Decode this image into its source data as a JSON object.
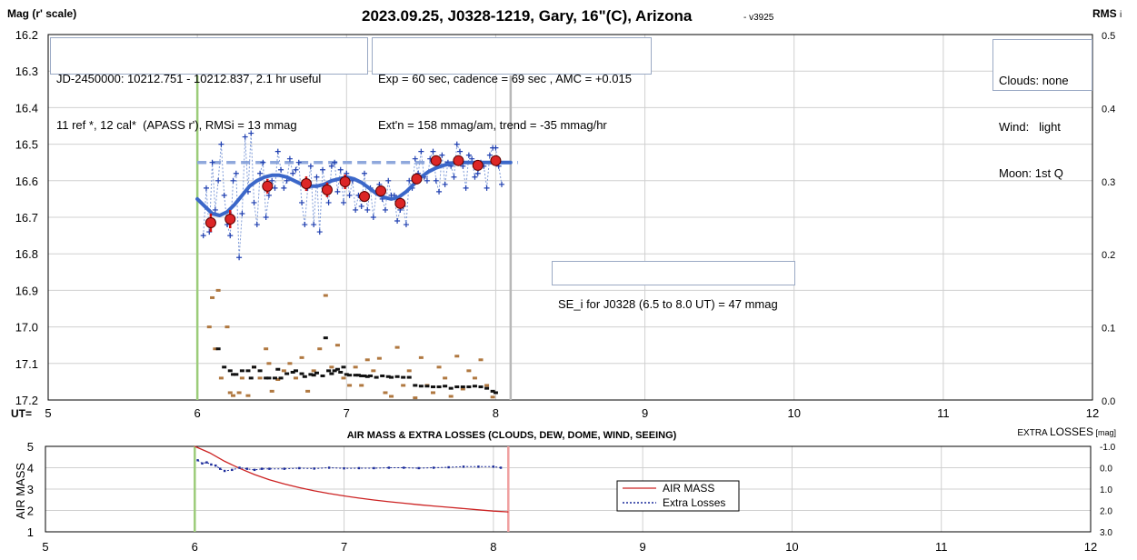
{
  "header": {
    "left_label": "Mag (r' scale)",
    "title": "2023.09.25, J0328-1219, Gary, 16\"(C), Arizona",
    "version": "- v3925",
    "right_label": "RMS",
    "right_label_suffix": "i"
  },
  "info_boxes": {
    "jd_line1": "JD-2450000: 10212.751 - 10212.837, 2.1 hr useful",
    "jd_line2": "11 ref *, 12 cal*  (APASS r'), RMSi = 13 mmag",
    "exp_line1": "Exp = 60 sec, cadence = 69 sec , AMC = +0.015",
    "exp_line2": "Ext'n = 158 mmag/am, trend = -35 mmag/hr",
    "cond_line1": "Clouds: none",
    "cond_line2": "Wind:   light",
    "cond_line3": "Moon: 1st Q",
    "se_text": "SE_i for J0328 (6.5 to 8.0 UT) = 47 mmag"
  },
  "chart_data": [
    {
      "type": "scatter",
      "ylabel": "Mag (r' scale)",
      "y2label": "RMS i",
      "xlabel": "UT=",
      "xlim": [
        5,
        12
      ],
      "ylim": [
        17.2,
        16.2
      ],
      "y2lim": [
        0.0,
        0.5
      ],
      "x_ticks": [
        "5",
        "6",
        "7",
        "8",
        "9",
        "10",
        "11",
        "12"
      ],
      "y_ticks": [
        "16.2",
        "16.3",
        "16.4",
        "16.5",
        "16.6",
        "16.7",
        "16.8",
        "16.9",
        "17.0",
        "17.1",
        "17.2"
      ],
      "y2_ticks": [
        "0.5",
        "0.4",
        "0.3",
        "0.2",
        "0.1",
        "0.0"
      ],
      "grid": true,
      "vlines": [
        {
          "x": 6.0,
          "color": "#9ccc7a"
        },
        {
          "x": 8.1,
          "color": "#b8b8b8"
        }
      ],
      "mean_line": {
        "y": 16.55,
        "x": [
          6.0,
          8.15
        ],
        "color": "#8fa8dc"
      },
      "series": [
        {
          "kind": "raw",
          "color": "#1f3fb0",
          "x": [
            6.04,
            6.06,
            6.08,
            6.1,
            6.12,
            6.14,
            6.16,
            6.18,
            6.2,
            6.22,
            6.24,
            6.26,
            6.28,
            6.3,
            6.32,
            6.34,
            6.36,
            6.38,
            6.4,
            6.42,
            6.44,
            6.46,
            6.48,
            6.5,
            6.52,
            6.54,
            6.56,
            6.58,
            6.6,
            6.62,
            6.64,
            6.66,
            6.68,
            6.7,
            6.72,
            6.74,
            6.76,
            6.78,
            6.8,
            6.82,
            6.84,
            6.86,
            6.88,
            6.9,
            6.92,
            6.94,
            6.96,
            6.98,
            7.0,
            7.02,
            7.04,
            7.06,
            7.08,
            7.1,
            7.12,
            7.14,
            7.16,
            7.18,
            7.2,
            7.22,
            7.24,
            7.26,
            7.28,
            7.3,
            7.32,
            7.34,
            7.36,
            7.38,
            7.4,
            7.42,
            7.44,
            7.46,
            7.48,
            7.5,
            7.52,
            7.54,
            7.56,
            7.58,
            7.6,
            7.62,
            7.64,
            7.66,
            7.68,
            7.7,
            7.72,
            7.74,
            7.76,
            7.78,
            7.8,
            7.82,
            7.84,
            7.86,
            7.88,
            7.9,
            7.92,
            7.94,
            7.96,
            7.98,
            8.0,
            8.02,
            8.04
          ],
          "y": [
            16.75,
            16.62,
            16.74,
            16.55,
            16.68,
            16.6,
            16.5,
            16.64,
            16.72,
            16.75,
            16.6,
            16.58,
            16.81,
            16.69,
            16.48,
            16.63,
            16.47,
            16.66,
            16.72,
            16.58,
            16.55,
            16.7,
            16.64,
            16.6,
            16.62,
            16.52,
            16.57,
            16.62,
            16.6,
            16.54,
            16.58,
            16.57,
            16.55,
            16.66,
            16.72,
            16.62,
            16.56,
            16.72,
            16.59,
            16.74,
            16.57,
            16.62,
            16.66,
            16.56,
            16.55,
            16.63,
            16.57,
            16.66,
            16.58,
            16.64,
            16.6,
            16.68,
            16.64,
            16.67,
            16.58,
            16.68,
            16.62,
            16.7,
            16.63,
            16.61,
            16.65,
            16.68,
            16.6,
            16.64,
            16.64,
            16.71,
            16.68,
            16.67,
            16.72,
            16.6,
            16.62,
            16.54,
            16.58,
            16.52,
            16.59,
            16.6,
            16.54,
            16.52,
            16.6,
            16.63,
            16.53,
            16.61,
            16.55,
            16.56,
            16.59,
            16.5,
            16.52,
            16.56,
            16.62,
            16.53,
            16.54,
            16.59,
            16.58,
            16.55,
            16.56,
            16.62,
            16.53,
            16.51,
            16.51,
            16.56,
            16.61
          ]
        },
        {
          "kind": "binned",
          "color": "#dc2626",
          "x": [
            6.09,
            6.22,
            6.47,
            6.73,
            6.87,
            6.99,
            7.12,
            7.23,
            7.36,
            7.47,
            7.6,
            7.75,
            7.88,
            8.0
          ],
          "y": [
            16.715,
            16.705,
            16.615,
            16.608,
            16.625,
            16.603,
            16.643,
            16.628,
            16.662,
            16.595,
            16.545,
            16.545,
            16.558,
            16.545
          ],
          "err": [
            0.025,
            0.025,
            0.02,
            0.02,
            0.02,
            0.02,
            0.015,
            0.015,
            0.015,
            0.015,
            0.012,
            0.012,
            0.012,
            0.012
          ]
        },
        {
          "kind": "model",
          "color": "#3b67c9",
          "x": [
            6.0,
            6.05,
            6.1,
            6.15,
            6.2,
            6.25,
            6.3,
            6.35,
            6.4,
            6.45,
            6.5,
            6.55,
            6.6,
            6.65,
            6.7,
            6.75,
            6.8,
            6.85,
            6.9,
            6.95,
            7.0,
            7.05,
            7.1,
            7.15,
            7.2,
            7.25,
            7.3,
            7.35,
            7.4,
            7.45,
            7.5,
            7.55,
            7.6,
            7.65,
            7.7,
            7.75,
            7.8,
            7.85,
            7.9,
            7.95,
            8.0,
            8.05,
            8.1
          ],
          "y": [
            16.65,
            16.67,
            16.69,
            16.695,
            16.685,
            16.665,
            16.64,
            16.615,
            16.6,
            16.59,
            16.585,
            16.585,
            16.59,
            16.6,
            16.61,
            16.615,
            16.615,
            16.61,
            16.6,
            16.595,
            16.59,
            16.595,
            16.605,
            16.62,
            16.635,
            16.645,
            16.65,
            16.645,
            16.63,
            16.61,
            16.59,
            16.575,
            16.565,
            16.558,
            16.553,
            16.551,
            16.55,
            16.55,
            16.55,
            16.55,
            16.55,
            16.55,
            16.55
          ]
        },
        {
          "kind": "rms_black",
          "color": "#111111",
          "axis": "right",
          "x": [
            6.14,
            6.18,
            6.22,
            6.24,
            6.26,
            6.3,
            6.34,
            6.36,
            6.38,
            6.42,
            6.46,
            6.48,
            6.52,
            6.54,
            6.56,
            6.6,
            6.64,
            6.66,
            6.7,
            6.72,
            6.76,
            6.78,
            6.8,
            6.84,
            6.86,
            6.88,
            6.9,
            6.92,
            6.94,
            6.96,
            6.98,
            7.0,
            7.02,
            7.06,
            7.08,
            7.1,
            7.12,
            7.14,
            7.16,
            7.2,
            7.24,
            7.28,
            7.3,
            7.34,
            7.38,
            7.42,
            7.46,
            7.5,
            7.54,
            7.58,
            7.62,
            7.66,
            7.7,
            7.74,
            7.78,
            7.82,
            7.86,
            7.9,
            7.94,
            7.98,
            8.0
          ],
          "y": [
            0.07,
            0.045,
            0.04,
            0.035,
            0.035,
            0.04,
            0.04,
            0.03,
            0.045,
            0.04,
            0.03,
            0.03,
            0.03,
            0.042,
            0.03,
            0.036,
            0.038,
            0.04,
            0.036,
            0.032,
            0.035,
            0.034,
            0.037,
            0.033,
            0.085,
            0.04,
            0.036,
            0.04,
            0.042,
            0.038,
            0.045,
            0.035,
            0.034,
            0.034,
            0.034,
            0.033,
            0.033,
            0.032,
            0.033,
            0.031,
            0.033,
            0.032,
            0.031,
            0.032,
            0.031,
            0.031,
            0.02,
            0.019,
            0.019,
            0.018,
            0.018,
            0.019,
            0.016,
            0.018,
            0.018,
            0.018,
            0.019,
            0.018,
            0.016,
            0.012,
            0.01
          ]
        },
        {
          "kind": "rms_brown",
          "color": "#b07840",
          "axis": "right",
          "x": [
            6.08,
            6.1,
            6.12,
            6.14,
            6.16,
            6.2,
            6.22,
            6.24,
            6.28,
            6.3,
            6.34,
            6.38,
            6.42,
            6.46,
            6.48,
            6.5,
            6.54,
            6.58,
            6.62,
            6.66,
            6.7,
            6.74,
            6.78,
            6.82,
            6.86,
            6.9,
            6.94,
            6.98,
            7.02,
            7.06,
            7.1,
            7.14,
            7.18,
            7.22,
            7.26,
            7.3,
            7.34,
            7.38,
            7.42,
            7.46,
            7.5,
            7.54,
            7.58,
            7.62,
            7.66,
            7.7,
            7.74,
            7.78,
            7.82,
            7.86,
            7.9,
            7.94,
            7.98
          ],
          "y": [
            0.1,
            0.14,
            0.07,
            0.15,
            0.03,
            0.1,
            0.01,
            0.006,
            0.01,
            0.03,
            0.006,
            0.045,
            0.03,
            0.07,
            0.05,
            0.012,
            0.028,
            0.04,
            0.05,
            0.03,
            0.058,
            0.012,
            0.04,
            0.07,
            0.143,
            0.045,
            0.075,
            0.03,
            0.02,
            0.045,
            0.02,
            0.055,
            0.04,
            0.057,
            0.01,
            0.005,
            0.072,
            0.02,
            0.04,
            0.003,
            0.058,
            0.02,
            0.01,
            0.045,
            0.03,
            0.005,
            0.06,
            0.015,
            0.04,
            0.03,
            0.055,
            0.02,
            0.004
          ]
        }
      ]
    },
    {
      "type": "line",
      "title": "AIR MASS & EXTRA LOSSES (CLOUDS, DEW, DOME, WIND, SEEING)",
      "ylabel": "AIR MASS",
      "y2label": "EXTRA LOSSES [mag]",
      "xlim": [
        5,
        12
      ],
      "ylim": [
        1,
        5
      ],
      "y2lim": [
        -1.0,
        3.0
      ],
      "x_ticks": [
        "5",
        "6",
        "7",
        "8",
        "9",
        "10",
        "11",
        "12"
      ],
      "y_ticks": [
        "5",
        "4",
        "3",
        "2",
        "1"
      ],
      "y2_ticks": [
        "-1.0",
        "0.0",
        "1.0",
        "2.0",
        "3.0"
      ],
      "grid": true,
      "legend": "center-right",
      "vlines": [
        {
          "x": 6.0,
          "color": "#9ccc7a"
        },
        {
          "x": 8.1,
          "color": "#f0a0a0"
        }
      ],
      "series": [
        {
          "name": "AIR MASS",
          "color": "#cc2222",
          "x": [
            6.0,
            6.1,
            6.2,
            6.3,
            6.4,
            6.5,
            6.6,
            6.7,
            6.8,
            6.9,
            7.0,
            7.1,
            7.2,
            7.3,
            7.4,
            7.5,
            7.6,
            7.7,
            7.8,
            7.9,
            8.0,
            8.1
          ],
          "y": [
            5.05,
            4.7,
            4.3,
            3.97,
            3.68,
            3.44,
            3.24,
            3.07,
            2.92,
            2.79,
            2.68,
            2.58,
            2.49,
            2.41,
            2.34,
            2.27,
            2.21,
            2.15,
            2.09,
            2.03,
            1.97,
            1.93
          ]
        },
        {
          "name": "Extra Losses",
          "color": "#1a2a9a",
          "axis": "right",
          "x": [
            6.02,
            6.05,
            6.08,
            6.11,
            6.14,
            6.17,
            6.2,
            6.25,
            6.3,
            6.35,
            6.4,
            6.45,
            6.5,
            6.6,
            6.7,
            6.8,
            6.9,
            7.0,
            7.1,
            7.2,
            7.3,
            7.4,
            7.5,
            7.6,
            7.7,
            7.8,
            7.9,
            8.0,
            8.05
          ],
          "y": [
            -0.35,
            -0.2,
            -0.25,
            -0.15,
            -0.1,
            0.05,
            0.15,
            0.1,
            0.0,
            0.05,
            0.1,
            0.05,
            0.05,
            0.05,
            0.02,
            0.04,
            0.0,
            0.03,
            0.02,
            0.02,
            0.0,
            0.0,
            0.02,
            0.0,
            -0.02,
            -0.05,
            -0.05,
            -0.05,
            0.0
          ]
        }
      ]
    }
  ]
}
